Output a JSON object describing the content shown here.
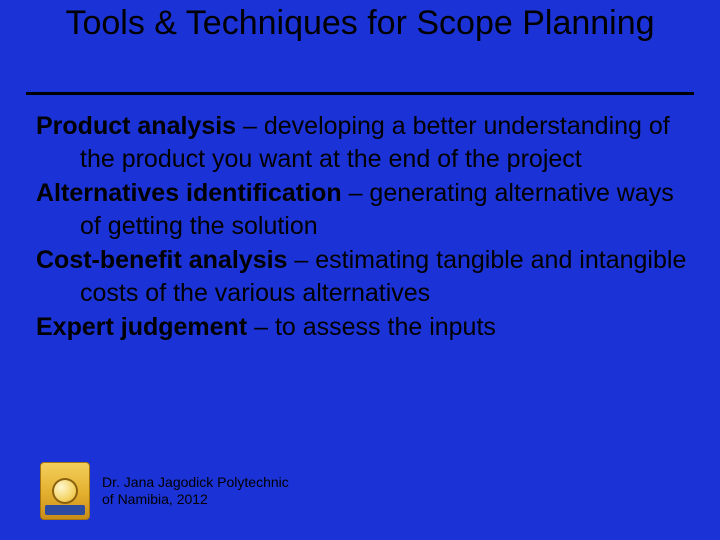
{
  "background_color": "#1b33d6",
  "title": {
    "text": "Tools & Techniques for Scope Planning",
    "color": "#000000",
    "fontsize": 34,
    "underline_color": "#000000",
    "underline_thickness": 3
  },
  "body": {
    "color": "#000000",
    "fontsize": 25,
    "items": [
      {
        "term": "Product analysis",
        "desc": " – developing a better understanding of the product you want at the end of the project"
      },
      {
        "term": "Alternatives identification",
        "desc": " – generating alternative ways of getting the solution"
      },
      {
        "term": "Cost-benefit analysis",
        "desc": " – estimating tangible and intangible costs of the various alternatives"
      },
      {
        "term": "Expert judgement",
        "desc": " – to assess the inputs"
      }
    ]
  },
  "footer": {
    "line1": "Dr. Jana Jagodick Polytechnic",
    "line2": "of Namibia, 2012",
    "fontsize": 14,
    "color": "#000000"
  },
  "logo": {
    "name": "polytechnic-namibia-crest",
    "colors": {
      "shield": "#e3af2e",
      "sun": "#f3cf5a",
      "banner": "#2b4aa0"
    }
  }
}
